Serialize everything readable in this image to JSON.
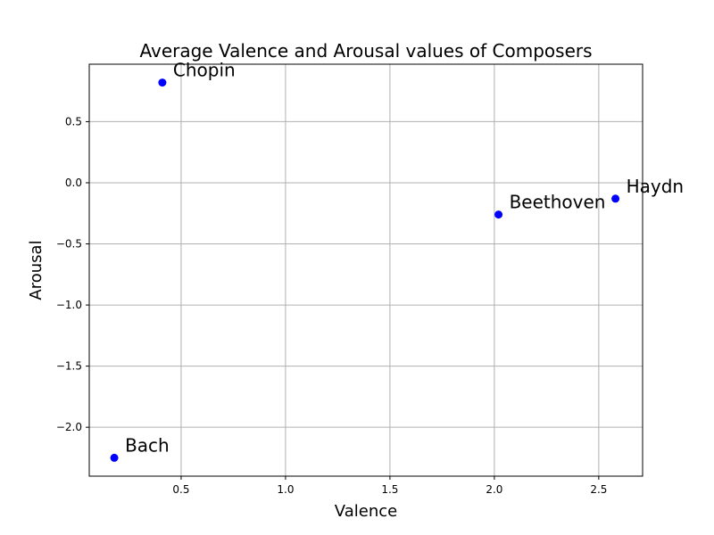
{
  "chart_data": {
    "type": "scatter",
    "title": "Average Valence and Arousal values of Composers",
    "xlabel": "Valence",
    "ylabel": "Arousal",
    "xlim": [
      0.06,
      2.71
    ],
    "ylim": [
      -2.4,
      0.97
    ],
    "xticks": [
      0.5,
      1.0,
      1.5,
      2.0,
      2.5
    ],
    "yticks": [
      -2.0,
      -1.5,
      -1.0,
      -0.5,
      0.0,
      0.5
    ],
    "xtick_labels": [
      "0.5",
      "1.0",
      "1.5",
      "2.0",
      "2.5"
    ],
    "ytick_labels": [
      "−2.0",
      "−1.5",
      "−1.0",
      "−0.5",
      "0.0",
      "0.5"
    ],
    "grid": true,
    "marker_color": "#0000ff",
    "points": [
      {
        "label": "Chopin",
        "x": 0.41,
        "y": 0.82
      },
      {
        "label": "Beethoven",
        "x": 2.02,
        "y": -0.26
      },
      {
        "label": "Haydn",
        "x": 2.58,
        "y": -0.13
      },
      {
        "label": "Bach",
        "x": 0.18,
        "y": -2.25
      }
    ]
  }
}
